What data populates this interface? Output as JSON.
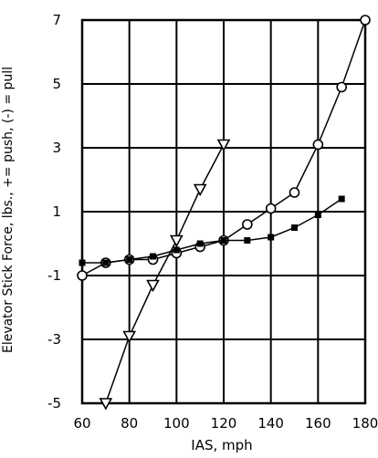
{
  "chart_data": {
    "type": "line",
    "xlabel": "IAS, mph",
    "ylabel": "Elevator Stick Force, lbs., += push, (-) = pull",
    "xlim": [
      60,
      180
    ],
    "ylim": [
      -5,
      7
    ],
    "grid": true,
    "x_ticks": [
      "60",
      "80",
      "100",
      "120",
      "140",
      "160",
      "180"
    ],
    "y_ticks": [
      "-5",
      "-3",
      "-1",
      "1",
      "3",
      "5",
      "7"
    ],
    "series": [
      {
        "marker": "triangle-down",
        "x": [
          70,
          80,
          90,
          100,
          110,
          120
        ],
        "y": [
          -5.0,
          -2.9,
          -1.3,
          0.1,
          1.7,
          3.1
        ]
      },
      {
        "marker": "circle",
        "x": [
          60,
          70,
          80,
          90,
          100,
          110,
          120,
          130,
          140,
          150,
          160,
          170,
          180
        ],
        "y": [
          -1.0,
          -0.6,
          -0.5,
          -0.5,
          -0.3,
          -0.1,
          0.1,
          0.6,
          1.1,
          1.6,
          3.1,
          4.9,
          7.0
        ]
      },
      {
        "marker": "square",
        "x": [
          60,
          70,
          80,
          90,
          100,
          110,
          120,
          130,
          140,
          150,
          160,
          170
        ],
        "y": [
          -0.6,
          -0.6,
          -0.5,
          -0.4,
          -0.2,
          0.0,
          0.1,
          0.1,
          0.2,
          0.5,
          0.9,
          1.4
        ]
      }
    ]
  }
}
